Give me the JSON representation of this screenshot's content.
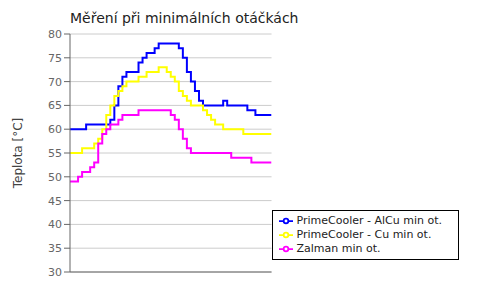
{
  "chart_data": {
    "type": "line",
    "title": "Měření při minimálních otáčkách",
    "y_label": "Teplota [°C]",
    "x": [
      0,
      1,
      2,
      3,
      4,
      5,
      6,
      7,
      8,
      9,
      10,
      11,
      12,
      13,
      14,
      15,
      16,
      17,
      18,
      19,
      20,
      21,
      22,
      23,
      24,
      25,
      26,
      27,
      28,
      29,
      30,
      31,
      32,
      33,
      34,
      35,
      36,
      37,
      38,
      39,
      40,
      41,
      42,
      43,
      44,
      45,
      46,
      47,
      48,
      49,
      50
    ],
    "series": [
      {
        "name": "PrimeCooler - AlCu min ot.",
        "color": "#0000ff",
        "values": [
          60,
          60,
          60,
          60,
          61,
          61,
          61,
          61,
          61,
          61,
          62,
          65,
          69,
          71,
          72,
          72,
          72,
          74,
          75,
          76,
          76,
          77,
          78,
          78,
          78,
          78,
          78,
          77,
          75,
          72,
          70,
          68,
          66,
          65,
          65,
          65,
          65,
          65,
          66,
          65,
          65,
          65,
          65,
          65,
          64,
          64,
          63,
          63,
          63,
          63,
          63
        ]
      },
      {
        "name": "PrimeCooler - Cu min ot.",
        "color": "#ffff00",
        "values": [
          55,
          55,
          55,
          56,
          56,
          56,
          57,
          58,
          60,
          63,
          65,
          67,
          68,
          69,
          70,
          70,
          70,
          71,
          71,
          72,
          72,
          72,
          73,
          73,
          72,
          71,
          70,
          68,
          67,
          66,
          65,
          65,
          65,
          64,
          63,
          62,
          61,
          61,
          60,
          60,
          60,
          60,
          60,
          59,
          59,
          59,
          59,
          59,
          59,
          59,
          59
        ]
      },
      {
        "name": "Zalman min ot.",
        "color": "#ff00ff",
        "values": [
          49,
          49,
          50,
          51,
          51,
          52,
          53,
          57,
          59,
          60,
          61,
          61,
          62,
          63,
          63,
          63,
          63,
          64,
          64,
          64,
          64,
          64,
          64,
          64,
          64,
          63,
          62,
          60,
          58,
          56,
          55,
          55,
          55,
          55,
          55,
          55,
          55,
          55,
          55,
          55,
          54,
          54,
          54,
          54,
          54,
          53,
          53,
          53,
          53,
          53,
          53
        ]
      }
    ],
    "xlim": [
      0,
      50
    ],
    "ylim": [
      30,
      80
    ],
    "yticks": [
      30,
      35,
      40,
      45,
      50,
      55,
      60,
      65,
      70,
      75,
      80
    ],
    "grid": "y",
    "legend": "lower right",
    "tick_labels": "y",
    "line_style": "step"
  }
}
